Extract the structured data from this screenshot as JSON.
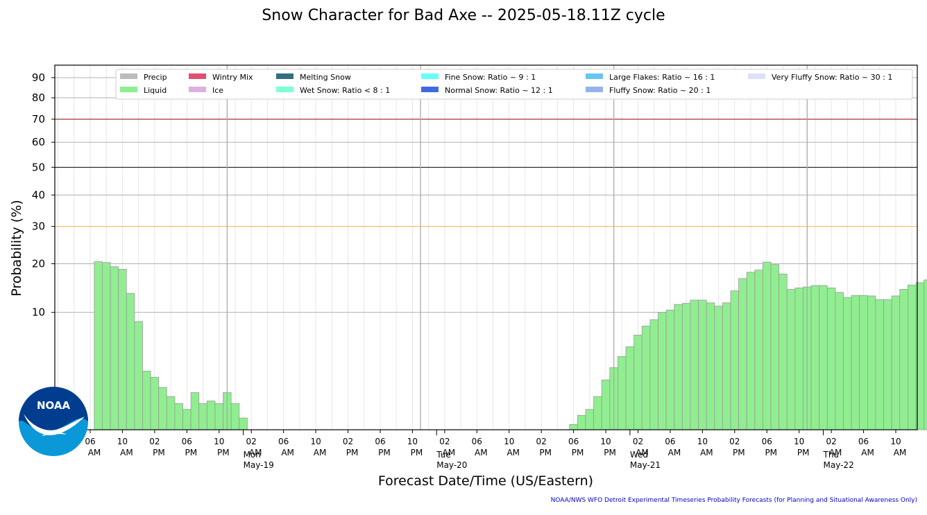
{
  "title": "Snow Character for Bad Axe -- 2025-05-18.11Z cycle",
  "footer": "NOAA/NWS WFO Detroit Experimental Timeseries Probability Forecasts (for Planning and Situational Awareness Only)",
  "logo_text": "NOAA",
  "colors": {
    "liquid": "#90ee90",
    "bar_edge": "#9a9a9a",
    "threshold_70": "#8b0000",
    "threshold_50": "#000000",
    "threshold_30": "#f0b040"
  },
  "chart_data": {
    "type": "bar",
    "title": "Snow Character for Bad Axe -- 2025-05-18.11Z cycle",
    "xlabel": "Forecast Date/Time (US/Eastern)",
    "ylabel": "Probability (%)",
    "ylim": [
      0,
      96
    ],
    "y_scale": "sqrt",
    "y_ticks": [
      10,
      20,
      30,
      40,
      50,
      60,
      70,
      80,
      90
    ],
    "threshold_lines": [
      30,
      50,
      70
    ],
    "grid": true,
    "legend_position": "top",
    "legend": [
      {
        "label": "Precip",
        "color": "#bbbbbb"
      },
      {
        "label": "Liquid",
        "color": "#90ee90"
      },
      {
        "label": "Wintry Mix",
        "color": "#e05070"
      },
      {
        "label": "Ice",
        "color": "#ddb0dd"
      },
      {
        "label": "Melting Snow",
        "color": "#336f80"
      },
      {
        "label": "Wet Snow: Ratio < 8 : 1",
        "color": "#7fffd4"
      },
      {
        "label": "Fine Snow: Ratio ~ 9 : 1",
        "color": "#66ffff"
      },
      {
        "label": "Normal Snow: Ratio ~ 12 : 1",
        "color": "#4169e1"
      },
      {
        "label": "Large Flakes: Ratio ~ 16 : 1",
        "color": "#66c6f0"
      },
      {
        "label": "Fluffy Snow: Ratio ~ 20 : 1",
        "color": "#95b2ea"
      },
      {
        "label": "Very Fluffy Snow: Ratio ~ 30 : 1",
        "color": "#dde0fa"
      }
    ],
    "x_tick_labels": [
      {
        "hour": "06",
        "ampm": "AM",
        "date": "",
        "day": ""
      },
      {
        "hour": "10",
        "ampm": "AM",
        "date": "",
        "day": ""
      },
      {
        "hour": "02",
        "ampm": "PM",
        "date": "",
        "day": ""
      },
      {
        "hour": "06",
        "ampm": "PM",
        "date": "",
        "day": ""
      },
      {
        "hour": "10",
        "ampm": "PM",
        "date": "",
        "day": ""
      },
      {
        "hour": "02",
        "ampm": "AM",
        "date": "May-19",
        "day": "Mon"
      },
      {
        "hour": "06",
        "ampm": "AM",
        "date": "",
        "day": ""
      },
      {
        "hour": "10",
        "ampm": "AM",
        "date": "",
        "day": ""
      },
      {
        "hour": "02",
        "ampm": "PM",
        "date": "",
        "day": ""
      },
      {
        "hour": "06",
        "ampm": "PM",
        "date": "",
        "day": ""
      },
      {
        "hour": "10",
        "ampm": "PM",
        "date": "",
        "day": ""
      },
      {
        "hour": "02",
        "ampm": "AM",
        "date": "May-20",
        "day": "Tue"
      },
      {
        "hour": "06",
        "ampm": "AM",
        "date": "",
        "day": ""
      },
      {
        "hour": "10",
        "ampm": "AM",
        "date": "",
        "day": ""
      },
      {
        "hour": "02",
        "ampm": "PM",
        "date": "",
        "day": ""
      },
      {
        "hour": "06",
        "ampm": "PM",
        "date": "",
        "day": ""
      },
      {
        "hour": "10",
        "ampm": "PM",
        "date": "",
        "day": ""
      },
      {
        "hour": "02",
        "ampm": "AM",
        "date": "May-21",
        "day": "Wed"
      },
      {
        "hour": "06",
        "ampm": "AM",
        "date": "",
        "day": ""
      },
      {
        "hour": "10",
        "ampm": "AM",
        "date": "",
        "day": ""
      },
      {
        "hour": "02",
        "ampm": "PM",
        "date": "",
        "day": ""
      },
      {
        "hour": "06",
        "ampm": "PM",
        "date": "",
        "day": ""
      },
      {
        "hour": "10",
        "ampm": "PM",
        "date": "",
        "day": ""
      },
      {
        "hour": "02",
        "ampm": "AM",
        "date": "May-22",
        "day": "Thu"
      },
      {
        "hour": "06",
        "ampm": "AM",
        "date": "",
        "day": ""
      },
      {
        "hour": "10",
        "ampm": "AM",
        "date": "",
        "day": ""
      }
    ],
    "series": [
      {
        "name": "Liquid",
        "x_start": "2025-05-18 07:00",
        "x_step_hours": 1,
        "values": [
          20.5,
          20.3,
          19.3,
          18.7,
          13.5,
          8.5,
          2.5,
          2.0,
          1.3,
          0.8,
          0.5,
          0.3,
          1.0,
          0.5,
          0.6,
          0.5,
          1.0,
          0.5,
          0.1,
          0,
          0,
          0,
          0,
          0,
          0,
          0,
          0,
          0,
          0,
          0,
          0,
          0,
          0,
          0,
          0,
          0,
          0,
          0,
          0,
          0,
          0,
          0,
          0,
          0,
          0,
          0,
          0,
          0,
          0,
          0,
          0,
          0,
          0,
          0,
          0,
          0,
          0,
          0,
          0,
          0.02,
          0.15,
          0.3,
          0.8,
          1.8,
          2.8,
          3.9,
          5.0,
          6.5,
          7.8,
          8.8,
          10.0,
          10.4,
          11.4,
          11.6,
          12.2,
          12.2,
          11.7,
          11.1,
          11.7,
          14.0,
          16.6,
          18.0,
          18.5,
          20.4,
          19.8,
          17.6,
          14.3,
          14.6,
          14.8,
          15.1,
          15.1,
          14.6,
          13.7,
          12.7,
          13.1,
          13.1,
          13.0,
          12.3,
          12.3,
          13.0,
          14.3,
          15.2,
          15.7,
          16.3,
          16.8,
          17.1
        ]
      }
    ]
  }
}
